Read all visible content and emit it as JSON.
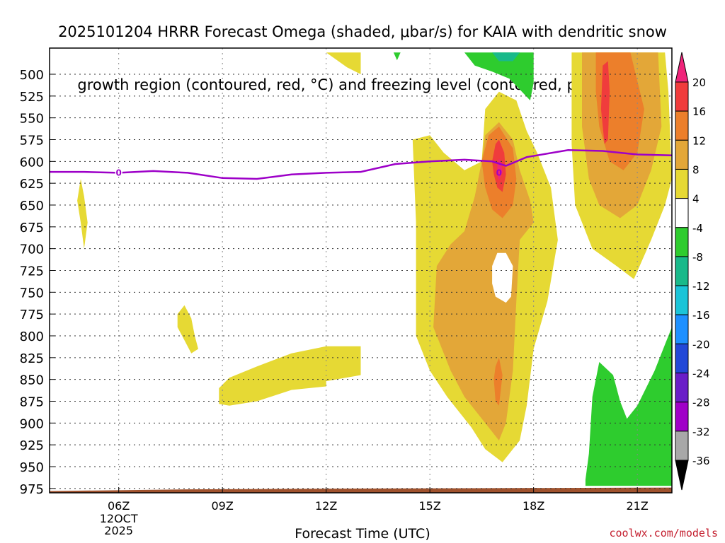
{
  "title_line1": "2025101204 HRRR Forecast Omega (shaded, μbar/s) for KAIA with dendritic snow",
  "title_line2": "growth region (contoured, red, °C) and freezing level (contoured, purple, °C)",
  "watermark": "coolwx.com/models",
  "chart_data": {
    "type": "contour",
    "xlabel": "Forecast Time (UTC)",
    "x_range": [
      "04Z",
      "22Z"
    ],
    "y_axis": "pressure (mb), inverted",
    "y_range": [
      980,
      470
    ],
    "x_ticks": [
      {
        "hour": 6,
        "label": "06Z",
        "sub1": "12OCT",
        "sub2": "2025"
      },
      {
        "hour": 9,
        "label": "09Z"
      },
      {
        "hour": 12,
        "label": "12Z"
      },
      {
        "hour": 15,
        "label": "15Z"
      },
      {
        "hour": 18,
        "label": "18Z"
      },
      {
        "hour": 21,
        "label": "21Z"
      }
    ],
    "y_ticks": [
      500,
      525,
      550,
      575,
      600,
      625,
      650,
      675,
      700,
      725,
      750,
      775,
      800,
      825,
      850,
      875,
      900,
      925,
      950,
      975
    ],
    "grid": true,
    "colorbar": {
      "levels": [
        20,
        16,
        12,
        8,
        4,
        -4,
        -8,
        -12,
        -16,
        -20,
        -24,
        -28,
        -32,
        -36
      ],
      "colors": [
        "#f0247a",
        "#f03c3c",
        "#ec7f2b",
        "#e3a738",
        "#e6d934",
        "#ffffff",
        "#2ecc2e",
        "#19b98a",
        "#1bc4d8",
        "#1e90ff",
        "#2348d8",
        "#6a1ec8",
        "#a000c8",
        "#a8a8a8",
        "#000000"
      ]
    },
    "freezing_level": {
      "label": "0",
      "color": "#9d00c8",
      "points": [
        [
          4.0,
          612
        ],
        [
          5.0,
          612
        ],
        [
          6.0,
          613
        ],
        [
          7.0,
          611
        ],
        [
          8.0,
          613
        ],
        [
          9.0,
          619
        ],
        [
          10.0,
          620
        ],
        [
          11.0,
          615
        ],
        [
          12.0,
          613
        ],
        [
          13.0,
          612
        ],
        [
          14.0,
          603
        ],
        [
          15.0,
          600
        ],
        [
          16.0,
          598
        ],
        [
          16.8,
          600
        ],
        [
          17.2,
          605
        ],
        [
          17.8,
          595
        ],
        [
          19.0,
          587
        ],
        [
          20.0,
          588
        ],
        [
          21.0,
          592
        ],
        [
          22.0,
          593
        ]
      ]
    },
    "dgz_label": "0",
    "omega_regions": [
      {
        "level": 4,
        "color": "#e6d934",
        "desc": "small patch ~05Z 630-700mb",
        "poly": [
          [
            4.9,
            620
          ],
          [
            5.0,
            640
          ],
          [
            5.1,
            670
          ],
          [
            5.0,
            700
          ],
          [
            4.9,
            670
          ],
          [
            4.8,
            645
          ]
        ]
      },
      {
        "level": 4,
        "color": "#e6d934",
        "desc": "patch ~08Z 760-820mb",
        "poly": [
          [
            7.7,
            775
          ],
          [
            7.9,
            765
          ],
          [
            8.1,
            780
          ],
          [
            8.2,
            800
          ],
          [
            8.3,
            815
          ],
          [
            8.1,
            820
          ],
          [
            7.9,
            805
          ],
          [
            7.7,
            790
          ]
        ]
      },
      {
        "level": 4,
        "color": "#e6d934",
        "desc": "band 09Z-13Z 820-890mb",
        "poly": [
          [
            8.9,
            860
          ],
          [
            9.2,
            848
          ],
          [
            10.0,
            835
          ],
          [
            11.0,
            820
          ],
          [
            12.0,
            812
          ],
          [
            13.0,
            812
          ],
          [
            13.0,
            845
          ],
          [
            12.0,
            852
          ],
          [
            12.0,
            858
          ],
          [
            11.0,
            862
          ],
          [
            10.0,
            875
          ],
          [
            9.2,
            880
          ],
          [
            8.9,
            878
          ]
        ]
      },
      {
        "level": 4,
        "color": "#e6d934",
        "desc": "top patch 12Z-13Z",
        "poly": [
          [
            12.0,
            475
          ],
          [
            13.0,
            475
          ],
          [
            13.0,
            500
          ],
          [
            12.6,
            492
          ]
        ]
      },
      {
        "level": 4,
        "color": "#e6d934",
        "desc": "main updraft 15Z-18Z",
        "poly": [
          [
            14.6,
            800
          ],
          [
            14.6,
            735
          ],
          [
            14.6,
            670
          ],
          [
            14.5,
            575
          ],
          [
            15.0,
            570
          ],
          [
            15.4,
            590
          ],
          [
            16.0,
            610
          ],
          [
            16.5,
            600
          ],
          [
            16.6,
            540
          ],
          [
            17.0,
            520
          ],
          [
            17.5,
            530
          ],
          [
            17.8,
            565
          ],
          [
            18.1,
            590
          ],
          [
            18.5,
            630
          ],
          [
            18.7,
            690
          ],
          [
            18.4,
            760
          ],
          [
            18.0,
            815
          ],
          [
            17.8,
            880
          ],
          [
            17.6,
            920
          ],
          [
            17.1,
            945
          ],
          [
            16.6,
            930
          ],
          [
            16.2,
            905
          ],
          [
            15.5,
            870
          ],
          [
            15.0,
            840
          ]
        ]
      },
      {
        "level": 4,
        "color": "#e6d934",
        "desc": "upper-right updraft 19Z-22Z",
        "poly": [
          [
            19.1,
            475
          ],
          [
            21.8,
            475
          ],
          [
            21.9,
            520
          ],
          [
            22.0,
            620
          ],
          [
            21.8,
            650
          ],
          [
            21.4,
            690
          ],
          [
            20.9,
            735
          ],
          [
            20.4,
            720
          ],
          [
            19.7,
            700
          ],
          [
            19.2,
            650
          ],
          [
            19.1,
            580
          ]
        ]
      },
      {
        "level": 8,
        "color": "#e3a738",
        "desc": "main updraft interior",
        "poly": [
          [
            15.1,
            790
          ],
          [
            15.2,
            720
          ],
          [
            15.6,
            695
          ],
          [
            16.0,
            680
          ],
          [
            16.3,
            640
          ],
          [
            16.5,
            600
          ],
          [
            16.6,
            570
          ],
          [
            17.0,
            555
          ],
          [
            17.4,
            575
          ],
          [
            17.6,
            610
          ],
          [
            17.9,
            645
          ],
          [
            18.0,
            670
          ],
          [
            17.6,
            690
          ],
          [
            17.5,
            760
          ],
          [
            17.4,
            840
          ],
          [
            17.2,
            900
          ],
          [
            17.0,
            920
          ],
          [
            16.6,
            900
          ],
          [
            16.0,
            870
          ],
          [
            15.6,
            840
          ]
        ]
      },
      {
        "level": 8,
        "color": "#e3a738",
        "desc": "upper-right interior",
        "poly": [
          [
            19.4,
            475
          ],
          [
            21.6,
            475
          ],
          [
            21.7,
            560
          ],
          [
            21.4,
            610
          ],
          [
            21.0,
            650
          ],
          [
            20.5,
            665
          ],
          [
            19.9,
            650
          ],
          [
            19.6,
            620
          ],
          [
            19.4,
            560
          ]
        ]
      },
      {
        "level": 12,
        "color": "#ec7f2b",
        "desc": "main orange core",
        "poly": [
          [
            16.5,
            600
          ],
          [
            16.7,
            570
          ],
          [
            17.0,
            560
          ],
          [
            17.4,
            585
          ],
          [
            17.5,
            620
          ],
          [
            17.4,
            650
          ],
          [
            17.1,
            665
          ],
          [
            16.8,
            655
          ],
          [
            16.6,
            630
          ]
        ]
      },
      {
        "level": 12,
        "color": "#ec7f2b",
        "desc": "low-level orange streak",
        "poly": [
          [
            16.85,
            850
          ],
          [
            16.9,
            835
          ],
          [
            17.0,
            825
          ],
          [
            17.1,
            845
          ],
          [
            17.0,
            880
          ],
          [
            16.9,
            875
          ]
        ]
      },
      {
        "level": 12,
        "color": "#ec7f2b",
        "desc": "upper-right orange core",
        "poly": [
          [
            19.8,
            475
          ],
          [
            20.8,
            475
          ],
          [
            21.2,
            540
          ],
          [
            21.0,
            590
          ],
          [
            20.6,
            610
          ],
          [
            20.2,
            600
          ],
          [
            19.9,
            560
          ],
          [
            19.8,
            520
          ]
        ]
      },
      {
        "level": 16,
        "color": "#f03c3c",
        "desc": "main red core",
        "poly": [
          [
            16.8,
            600
          ],
          [
            16.9,
            580
          ],
          [
            17.0,
            575
          ],
          [
            17.15,
            590
          ],
          [
            17.2,
            615
          ],
          [
            17.1,
            635
          ],
          [
            16.95,
            630
          ],
          [
            16.85,
            615
          ]
        ]
      },
      {
        "level": 16,
        "color": "#f03c3c",
        "desc": "upper-right red core",
        "poly": [
          [
            20.0,
            490
          ],
          [
            20.15,
            485
          ],
          [
            20.2,
            520
          ],
          [
            20.15,
            575
          ],
          [
            20.05,
            580
          ],
          [
            19.95,
            540
          ]
        ]
      },
      {
        "level": 20,
        "color": "#f0247a",
        "desc": "main magenta core",
        "poly": [
          [
            16.95,
            605
          ],
          [
            17.0,
            597
          ],
          [
            17.05,
            600
          ],
          [
            17.1,
            612
          ],
          [
            17.0,
            622
          ],
          [
            16.95,
            615
          ]
        ]
      },
      {
        "level": 0,
        "color": "#ffffff",
        "desc": "clear hole in updraft",
        "poly": [
          [
            16.8,
            720
          ],
          [
            16.95,
            705
          ],
          [
            17.2,
            705
          ],
          [
            17.4,
            720
          ],
          [
            17.35,
            755
          ],
          [
            17.2,
            762
          ],
          [
            16.9,
            755
          ],
          [
            16.8,
            740
          ]
        ]
      },
      {
        "level": -4,
        "color": "#2ecc2e",
        "desc": "downward at top 16Z-18Z",
        "poly": [
          [
            16.0,
            475
          ],
          [
            18.0,
            475
          ],
          [
            18.0,
            510
          ],
          [
            17.9,
            530
          ],
          [
            17.3,
            505
          ],
          [
            16.8,
            497
          ],
          [
            16.3,
            490
          ]
        ]
      },
      {
        "level": -8,
        "color": "#19b98a",
        "desc": "teal at top",
        "poly": [
          [
            16.8,
            475
          ],
          [
            17.6,
            475
          ],
          [
            17.4,
            485
          ],
          [
            17.0,
            485
          ]
        ]
      },
      {
        "level": -4,
        "color": "#2ecc2e",
        "desc": "tiny green at top near 14Z",
        "poly": [
          [
            13.95,
            475
          ],
          [
            14.15,
            475
          ],
          [
            14.05,
            484
          ]
        ]
      },
      {
        "level": -4,
        "color": "#2ecc2e",
        "desc": "green lower-right 19Z-22Z",
        "poly": [
          [
            19.5,
            965
          ],
          [
            19.6,
            935
          ],
          [
            19.7,
            870
          ],
          [
            19.9,
            830
          ],
          [
            20.3,
            845
          ],
          [
            20.5,
            875
          ],
          [
            20.7,
            895
          ],
          [
            21.0,
            880
          ],
          [
            21.5,
            840
          ],
          [
            21.8,
            810
          ],
          [
            22.0,
            790
          ],
          [
            22.0,
            972
          ],
          [
            19.5,
            972
          ]
        ]
      }
    ],
    "terrain": {
      "color": "#a0522d",
      "top_mb": 976
    }
  }
}
